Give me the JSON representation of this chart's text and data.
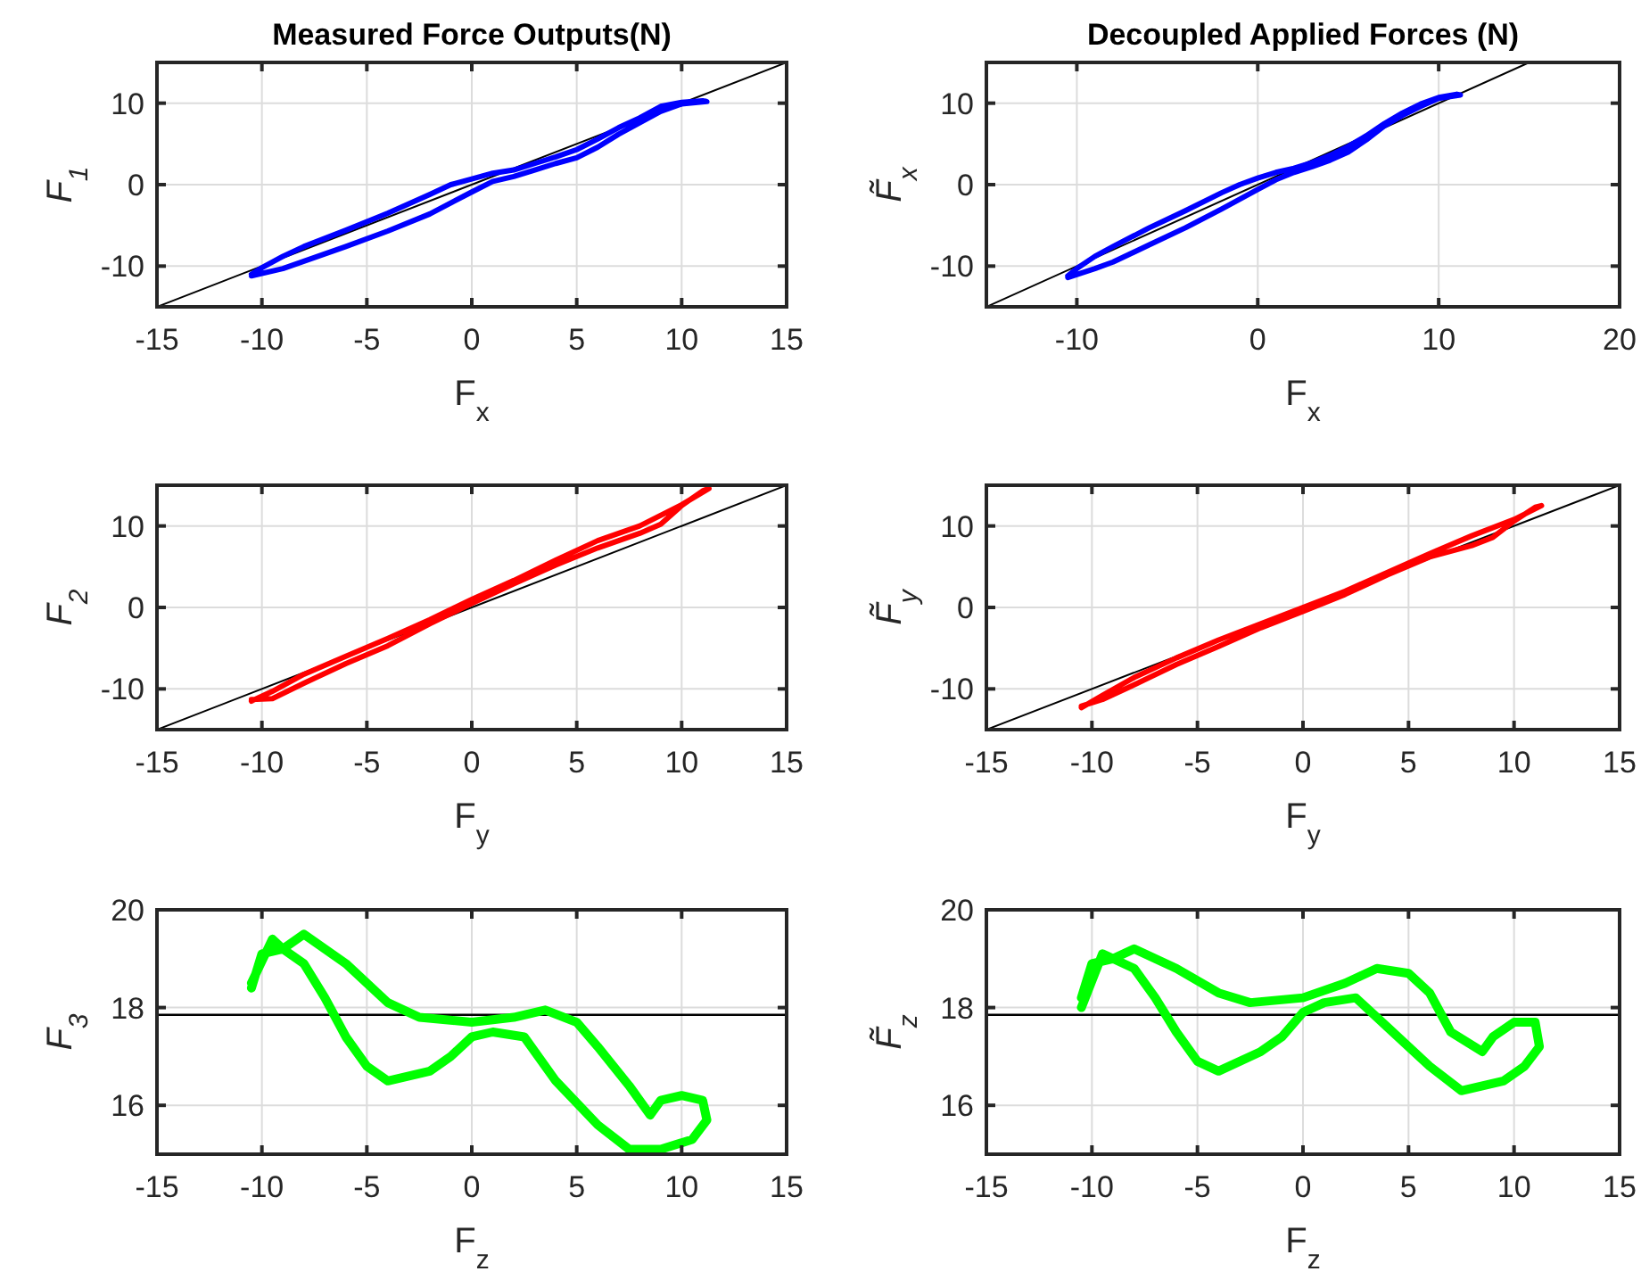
{
  "chart_data": [
    {
      "type": "line",
      "title": "Measured Force Outputs(N)",
      "xlabel": "F$_{x}$",
      "ylabel": "F$_{1}$",
      "xlim": [
        -15,
        15
      ],
      "xticks": [
        -15,
        -10,
        -5,
        0,
        5,
        10,
        15
      ],
      "ylim": [
        -15,
        15
      ],
      "yticks": [
        -10,
        0,
        10
      ],
      "grid": true,
      "series": [
        {
          "color": "#000000",
          "x": [
            -15,
            15
          ],
          "values": [
            -15,
            15
          ]
        },
        {
          "color": "#0000ff",
          "x": [
            -10.5,
            -9,
            -8,
            -6,
            -4,
            -2,
            0,
            1,
            2,
            3,
            4,
            5,
            6,
            7,
            8,
            9,
            10,
            11.2,
            11,
            10,
            9,
            8,
            7,
            6,
            5,
            4,
            3,
            2,
            1,
            0,
            -1,
            -2,
            -4,
            -6,
            -8,
            -9,
            -10,
            -10.5
          ],
          "values": [
            -11.2,
            -10.3,
            -9.4,
            -7.6,
            -5.7,
            -3.6,
            -0.9,
            0.4,
            1.0,
            1.8,
            2.6,
            3.3,
            4.6,
            6.2,
            7.6,
            9,
            9.9,
            10.2,
            10.3,
            10.1,
            9.6,
            8.2,
            7.0,
            5.6,
            4.3,
            3.4,
            2.6,
            1.8,
            1.4,
            0.7,
            0,
            -1.2,
            -3.5,
            -5.6,
            -7.6,
            -8.8,
            -10.2,
            -11.0
          ]
        }
      ]
    },
    {
      "type": "line",
      "title": "Decoupled Applied Forces (N)",
      "xlabel": "F$_{x}$",
      "ylabel": "F̃$_{x}$",
      "xlim": [
        -15,
        20
      ],
      "xticks": [
        -10,
        0,
        10,
        20
      ],
      "ylim": [
        -15,
        15
      ],
      "yticks": [
        -10,
        0,
        10
      ],
      "grid": true,
      "series": [
        {
          "color": "#000000",
          "x": [
            -15,
            15
          ],
          "values": [
            -15,
            15
          ]
        },
        {
          "color": "#0000ff",
          "x": [
            -10.5,
            -9,
            -8,
            -6,
            -4,
            -2,
            0,
            1,
            2,
            3,
            4,
            5,
            6,
            7,
            8,
            9,
            10,
            11.2,
            11,
            10,
            9,
            8,
            7,
            6,
            5,
            4,
            3,
            2,
            1,
            0,
            -1,
            -2,
            -4,
            -6,
            -8,
            -9,
            -10,
            -10.5
          ],
          "values": [
            -11.4,
            -10.3,
            -9.5,
            -7.4,
            -5.3,
            -3.0,
            -0.6,
            0.6,
            1.5,
            2.2,
            3.0,
            4.0,
            5.5,
            7.2,
            8.5,
            9.6,
            10.6,
            11.0,
            11.1,
            10.7,
            9.9,
            8.8,
            7.5,
            6.0,
            4.7,
            3.6,
            2.7,
            2.0,
            1.5,
            0.8,
            0,
            -1.0,
            -3.2,
            -5.3,
            -7.6,
            -8.8,
            -10.3,
            -11.2
          ]
        }
      ]
    },
    {
      "type": "line",
      "xlabel": "F$_{y}$",
      "ylabel": "F$_{2}$",
      "xlim": [
        -15,
        15
      ],
      "xticks": [
        -15,
        -10,
        -5,
        0,
        5,
        10,
        15
      ],
      "ylim": [
        -15,
        15
      ],
      "yticks": [
        -10,
        0,
        10
      ],
      "grid": true,
      "series": [
        {
          "color": "#000000",
          "x": [
            -15,
            15
          ],
          "values": [
            -15,
            15
          ]
        },
        {
          "color": "#ff0000",
          "x": [
            -10.5,
            -9.5,
            -8,
            -6,
            -4,
            -2,
            0,
            2,
            4,
            6,
            8,
            10,
            11.3,
            11,
            10,
            9,
            8,
            6,
            4,
            2,
            0,
            -2,
            -4,
            -6,
            -8,
            -9.5,
            -10.5
          ],
          "values": [
            -11.5,
            -10.3,
            -8.2,
            -6,
            -3.8,
            -1.5,
            1,
            3.3,
            5.8,
            8.2,
            10,
            12.6,
            14.6,
            14.3,
            12.5,
            10.2,
            9.1,
            7.3,
            5.2,
            2.9,
            0.5,
            -2.0,
            -4.7,
            -6.9,
            -9.3,
            -11.2,
            -11.3
          ]
        }
      ]
    },
    {
      "type": "line",
      "xlabel": "F$_{y}$",
      "ylabel": "F̃$_{y}$",
      "xlim": [
        -15,
        15
      ],
      "xticks": [
        -15,
        -10,
        -5,
        0,
        5,
        10,
        15
      ],
      "ylim": [
        -15,
        15
      ],
      "yticks": [
        -10,
        0,
        10
      ],
      "grid": true,
      "series": [
        {
          "color": "#000000",
          "x": [
            -15,
            15
          ],
          "values": [
            -15,
            15
          ]
        },
        {
          "color": "#ff0000",
          "x": [
            -10.5,
            -9.5,
            -8,
            -6,
            -4,
            -2,
            0,
            2,
            4,
            6,
            8,
            10,
            11.3,
            11,
            10,
            9,
            8,
            6,
            4,
            2,
            0,
            -2,
            -4,
            -6,
            -8,
            -9.5,
            -10.5
          ],
          "values": [
            -12.3,
            -10.8,
            -8.6,
            -6.2,
            -4.0,
            -2.0,
            0,
            2.0,
            4.3,
            6.6,
            8.8,
            10.8,
            12.5,
            12.3,
            10.6,
            8.6,
            7.6,
            6.2,
            4.0,
            1.6,
            -0.5,
            -2.5,
            -4.8,
            -7,
            -9.5,
            -11.3,
            -12.1
          ]
        }
      ]
    },
    {
      "type": "line",
      "xlabel": "F$_{z}$",
      "ylabel": "F$_{3}$",
      "xlim": [
        -15,
        15
      ],
      "xticks": [
        -15,
        -10,
        -5,
        0,
        5,
        10,
        15
      ],
      "ylim": [
        15,
        20
      ],
      "yticks": [
        16,
        18,
        20
      ],
      "grid": true,
      "ref_lines": [
        {
          "axis": "y",
          "value": 17.85,
          "color": "#000000"
        }
      ],
      "series": [
        {
          "color": "#00ff00",
          "x": [
            -10.5,
            -9.5,
            -9,
            -8,
            -6,
            -4,
            -2.5,
            0,
            2,
            3.5,
            5,
            6,
            7.5,
            8.5,
            9,
            10,
            11,
            11.2,
            10.5,
            9,
            7.5,
            6,
            4,
            2.5,
            1,
            0,
            -1,
            -2,
            -4,
            -5,
            -6,
            -7,
            -8,
            -9,
            -10,
            -10.5
          ],
          "values": [
            18.5,
            19.4,
            19.2,
            19.5,
            18.9,
            18.1,
            17.8,
            17.7,
            17.8,
            17.95,
            17.7,
            17.2,
            16.4,
            15.8,
            16.1,
            16.2,
            16.1,
            15.7,
            15.3,
            15.1,
            15.1,
            15.6,
            16.5,
            17.4,
            17.5,
            17.4,
            17.0,
            16.7,
            16.5,
            16.8,
            17.4,
            18.2,
            18.9,
            19.2,
            19.1,
            18.4
          ]
        }
      ]
    },
    {
      "type": "line",
      "xlabel": "F$_{z}$",
      "ylabel": "F̃$_{z}$",
      "xlim": [
        -15,
        15
      ],
      "xticks": [
        -15,
        -10,
        -5,
        0,
        5,
        10,
        15
      ],
      "ylim": [
        15,
        20
      ],
      "yticks": [
        16,
        18,
        20
      ],
      "grid": true,
      "ref_lines": [
        {
          "axis": "y",
          "value": 17.85,
          "color": "#000000"
        }
      ],
      "series": [
        {
          "color": "#00ff00",
          "x": [
            -10.5,
            -9.5,
            -9,
            -8,
            -6,
            -4,
            -2.5,
            0,
            2,
            3.5,
            5,
            6,
            7,
            8.5,
            9,
            10,
            11,
            11.2,
            10.5,
            9.5,
            7.5,
            6,
            4,
            2.5,
            1,
            0,
            -1,
            -2,
            -4,
            -5,
            -6,
            -7,
            -8,
            -9,
            -10,
            -10.5
          ],
          "values": [
            18.0,
            19.1,
            19.0,
            19.2,
            18.8,
            18.3,
            18.1,
            18.2,
            18.5,
            18.8,
            18.7,
            18.3,
            17.5,
            17.1,
            17.4,
            17.7,
            17.7,
            17.2,
            16.8,
            16.5,
            16.3,
            16.8,
            17.6,
            18.2,
            18.1,
            17.9,
            17.4,
            17.1,
            16.7,
            16.9,
            17.5,
            18.2,
            18.8,
            19.0,
            18.9,
            18.2
          ]
        }
      ]
    }
  ]
}
